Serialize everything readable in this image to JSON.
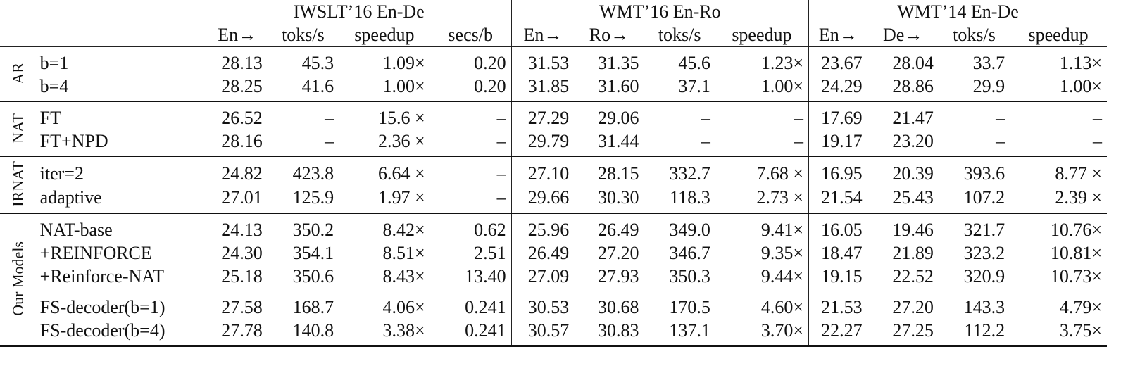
{
  "header": {
    "groups": [
      "IWSLT’16 En-De",
      "WMT’16 En-Ro",
      "WMT’14 En-De"
    ],
    "columns": [
      "En→",
      "toks/s",
      "speedup",
      "secs/b",
      "En→",
      "Ro→",
      "toks/s",
      "speedup",
      "En→",
      "De→",
      "toks/s",
      "speedup"
    ]
  },
  "sections": [
    {
      "label": "AR",
      "blocks": [
        [
          {
            "name": "b=1",
            "cells": [
              "28.13",
              "45.3",
              "1.09×",
              "0.20",
              "31.53",
              "31.35",
              "45.6",
              "1.23×",
              "23.67",
              "28.04",
              "33.7",
              "1.13×"
            ]
          },
          {
            "name": "b=4",
            "cells": [
              "28.25",
              "41.6",
              "1.00×",
              "0.20",
              "31.85",
              "31.60",
              "37.1",
              "1.00×",
              "24.29",
              "28.86",
              "29.9",
              "1.00×"
            ]
          }
        ]
      ]
    },
    {
      "label": "NAT",
      "blocks": [
        [
          {
            "name": "FT",
            "cells": [
              "26.52",
              "–",
              "15.6 ×",
              "–",
              "27.29",
              "29.06",
              "–",
              "–",
              "17.69",
              "21.47",
              "–",
              "–"
            ]
          },
          {
            "name": "FT+NPD",
            "cells": [
              "28.16",
              "–",
              "2.36 ×",
              "–",
              "29.79",
              "31.44",
              "–",
              "–",
              "19.17",
              "23.20",
              "–",
              "–"
            ]
          }
        ]
      ]
    },
    {
      "label": "IRNAT",
      "blocks": [
        [
          {
            "name": "iter=2",
            "cells": [
              "24.82",
              "423.8",
              "6.64 ×",
              "–",
              "27.10",
              "28.15",
              "332.7",
              "7.68 ×",
              "16.95",
              "20.39",
              "393.6",
              "8.77 ×"
            ]
          },
          {
            "name": "adaptive",
            "cells": [
              "27.01",
              "125.9",
              "1.97 ×",
              "–",
              "29.66",
              "30.30",
              "118.3",
              "2.73 ×",
              "21.54",
              "25.43",
              "107.2",
              "2.39 ×"
            ]
          }
        ]
      ]
    },
    {
      "label": "Our Models",
      "blocks": [
        [
          {
            "name": "NAT-base",
            "cells": [
              "24.13",
              "350.2",
              "8.42×",
              "0.62",
              "25.96",
              "26.49",
              "349.0",
              "9.41×",
              "16.05",
              "19.46",
              "321.7",
              "10.76×"
            ]
          },
          {
            "name": "+REINFORCE",
            "cells": [
              "24.30",
              "354.1",
              "8.51×",
              "2.51",
              "26.49",
              "27.20",
              "346.7",
              "9.35×",
              "18.47",
              "21.89",
              "323.2",
              "10.81×"
            ]
          },
          {
            "name": "+Reinforce-NAT",
            "cells": [
              "25.18",
              "350.6",
              "8.43×",
              "13.40",
              "27.09",
              "27.93",
              "350.3",
              "9.44×",
              "19.15",
              "22.52",
              "320.9",
              "10.73×"
            ]
          }
        ],
        [
          {
            "name": "FS-decoder(b=1)",
            "cells": [
              "27.58",
              "168.7",
              "4.06×",
              "0.241",
              "30.53",
              "30.68",
              "170.5",
              "4.60×",
              "21.53",
              "27.20",
              "143.3",
              "4.79×"
            ]
          },
          {
            "name": "FS-decoder(b=4)",
            "cells": [
              "27.78",
              "140.8",
              "3.38×",
              "0.241",
              "30.57",
              "30.83",
              "137.1",
              "3.70×",
              "22.27",
              "27.25",
              "112.2",
              "3.75×"
            ]
          }
        ]
      ]
    }
  ]
}
